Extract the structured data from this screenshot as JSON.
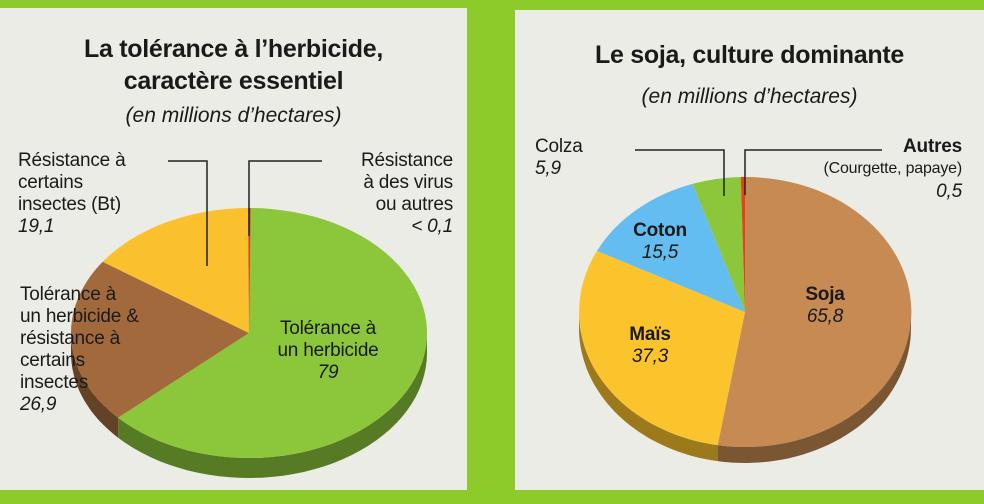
{
  "chart_data": [
    {
      "type": "pie",
      "title": "La tolérance à l'herbicide, caractère essentiel",
      "subtitle": "(en millions d'hectares)",
      "unit": "millions d'hectares",
      "slices": [
        {
          "label": "Tolérance à un herbicide",
          "value": 79,
          "value_label": "79",
          "color": "#8cc63a"
        },
        {
          "label": "Tolérance à un herbicide & résistance à certains insectes",
          "value": 26.9,
          "value_label": "26,9",
          "color": "#a26a3c"
        },
        {
          "label": "Résistance à certains insectes (Bt)",
          "value": 19.1,
          "value_label": "19,1",
          "color": "#fbc02d"
        },
        {
          "label": "Résistance à des virus ou autres",
          "value": 0.1,
          "value_label": "< 0,1",
          "color": "#e8401c"
        }
      ]
    },
    {
      "type": "pie",
      "title": "Le soja, culture dominante",
      "subtitle": "(en millions d'hectares)",
      "unit": "millions d'hectares",
      "slices": [
        {
          "label": "Soja",
          "value": 65.8,
          "value_label": "65,8",
          "color": "#c68a52"
        },
        {
          "label": "Maïs",
          "value": 37.3,
          "value_label": "37,3",
          "color": "#fcc42c"
        },
        {
          "label": "Coton",
          "value": 15.5,
          "value_label": "15,5",
          "color": "#64bdf0"
        },
        {
          "label": "Colza",
          "value": 5.9,
          "value_label": "5,9",
          "color": "#8cc63a"
        },
        {
          "label": "Autres (Courgette, papaye)",
          "value": 0.5,
          "value_label": "0,5",
          "color": "#e8401c"
        }
      ]
    }
  ],
  "left": {
    "title_line1": "La tolérance à l’herbicide,",
    "title_line2": "caractère essentiel",
    "subtitle": "(en millions d’hectares)",
    "labels": {
      "bt": {
        "l1": "Résistance à",
        "l2": "certains",
        "l3": "insectes (Bt)",
        "value": "19,1"
      },
      "virus": {
        "l1": "Résistance",
        "l2": "à des virus",
        "l3": "ou autres",
        "value": "< 0,1"
      },
      "combo": {
        "l1": "Tolérance à",
        "l2": "un herbicide &",
        "l3": "résistance à",
        "l4": "certains",
        "l5": "insectes",
        "value": "26,9"
      },
      "herb": {
        "l1": "Tolérance à",
        "l2": "un herbicide",
        "value": "79"
      }
    }
  },
  "right": {
    "title": "Le soja, culture dominante",
    "subtitle": "(en millions d’hectares)",
    "labels": {
      "colza": {
        "name": "Colza",
        "value": "5,9"
      },
      "autres": {
        "name": "Autres",
        "detail": "(Courgette, papaye)",
        "value": "0,5"
      },
      "coton": {
        "name": "Coton",
        "value": "15,5"
      },
      "mais": {
        "name": "Maïs",
        "value": "37,3"
      },
      "soja": {
        "name": "Soja",
        "value": "65,8"
      }
    }
  }
}
